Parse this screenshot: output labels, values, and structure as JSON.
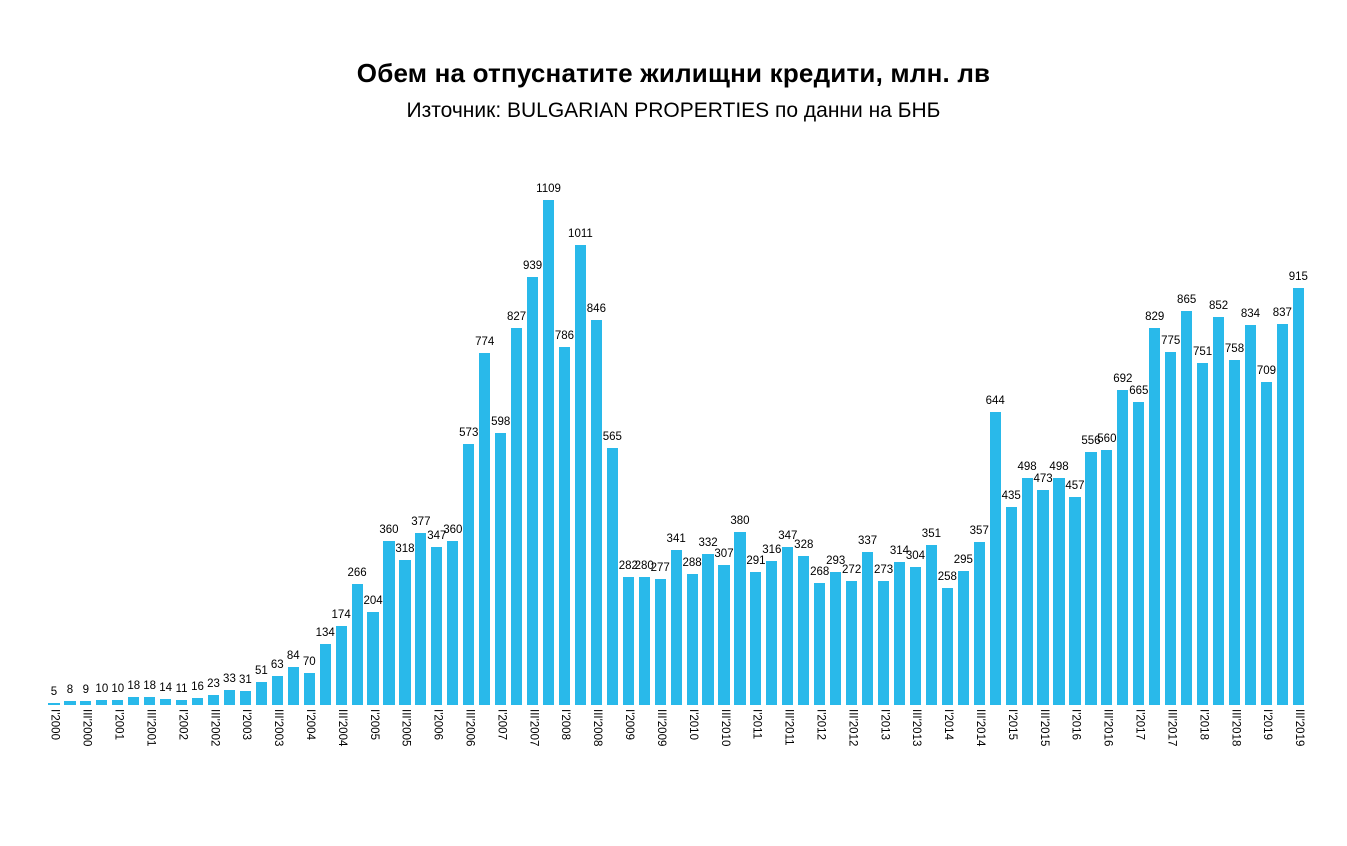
{
  "page": {
    "background": "#FFFFFF"
  },
  "chart_data": {
    "type": "bar",
    "title": "Обем на отпуснатите жилищни кредити, млн. лв",
    "subtitle": "Източник: BULGARIAN PROPERTIES по данни на БНБ",
    "unit": "млн. лв",
    "bar_color": "#29B9EA",
    "value_label_color": "#000000",
    "tick_label_color": "#000000",
    "grid": false,
    "y_axis_visible": false,
    "value_labels_position": "above bars, horizontal",
    "x_tick_rotation": "vertical, reads top to bottom",
    "x_tick_step": 2,
    "ylim": [
      0,
      1150
    ],
    "x_ticks": [
      "I'2000",
      "III'2000",
      "I'2001",
      "III'2001",
      "I'2002",
      "III'2002",
      "I'2003",
      "III'2003",
      "I'2004",
      "III'2004",
      "I'2005",
      "III'2005",
      "I'2006",
      "III'2006",
      "I'2007",
      "III'2007",
      "I'2008",
      "III'2008",
      "I'2009",
      "III'2009",
      "I'2010",
      "III'2010",
      "I'2011",
      "III'2011",
      "I'2012",
      "III'2012",
      "I'2013",
      "III'2013",
      "I'2014",
      "III'2014",
      "I'2015",
      "III'2015",
      "I'2016",
      "III'2016",
      "I'2017",
      "III'2017",
      "I'2018",
      "III'2018",
      "I'2019",
      "III'2019"
    ],
    "values": [
      5,
      8,
      9,
      10,
      10,
      18,
      18,
      14,
      11,
      16,
      23,
      33,
      31,
      51,
      63,
      84,
      70,
      134,
      174,
      266,
      204,
      360,
      318,
      377,
      347,
      360,
      573,
      774,
      598,
      827,
      939,
      1109,
      786,
      1011,
      846,
      565,
      282,
      280,
      277,
      341,
      288,
      332,
      307,
      380,
      291,
      316,
      347,
      328,
      268,
      293,
      272,
      337,
      273,
      314,
      304,
      351,
      258,
      295,
      357,
      644,
      435,
      498,
      473,
      498,
      457,
      556,
      560,
      692,
      665,
      829,
      775,
      865,
      751,
      852,
      758,
      834,
      709,
      837,
      915
    ]
  }
}
